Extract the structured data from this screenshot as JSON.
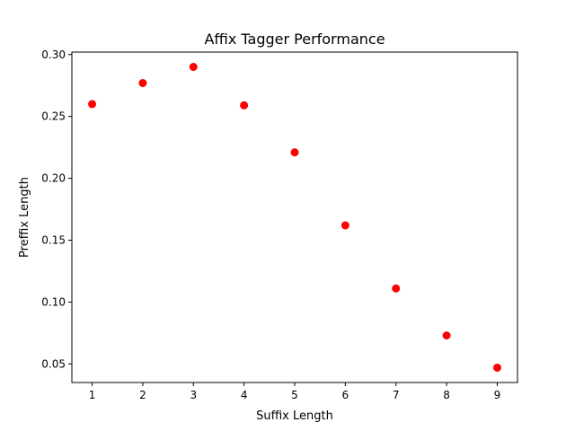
{
  "chart_data": {
    "type": "scatter",
    "title": "Affix Tagger Performance",
    "xlabel": "Suffix Length",
    "ylabel": "Preffix Length",
    "x": [
      1,
      2,
      3,
      4,
      5,
      6,
      7,
      8,
      9
    ],
    "y": [
      0.26,
      0.277,
      0.29,
      0.259,
      0.221,
      0.162,
      0.111,
      0.073,
      0.047
    ],
    "xlim": [
      0.6,
      9.4
    ],
    "ylim": [
      0.035,
      0.302
    ],
    "xticks": [
      1,
      2,
      3,
      4,
      5,
      6,
      7,
      8,
      9
    ],
    "xtick_labels": [
      "1",
      "2",
      "3",
      "4",
      "5",
      "6",
      "7",
      "8",
      "9"
    ],
    "yticks": [
      0.05,
      0.1,
      0.15,
      0.2,
      0.25,
      0.3
    ],
    "ytick_labels": [
      "0.05",
      "0.10",
      "0.15",
      "0.20",
      "0.25",
      "0.30"
    ],
    "marker_color": "#ff0000",
    "grid": false,
    "legend": "none"
  }
}
